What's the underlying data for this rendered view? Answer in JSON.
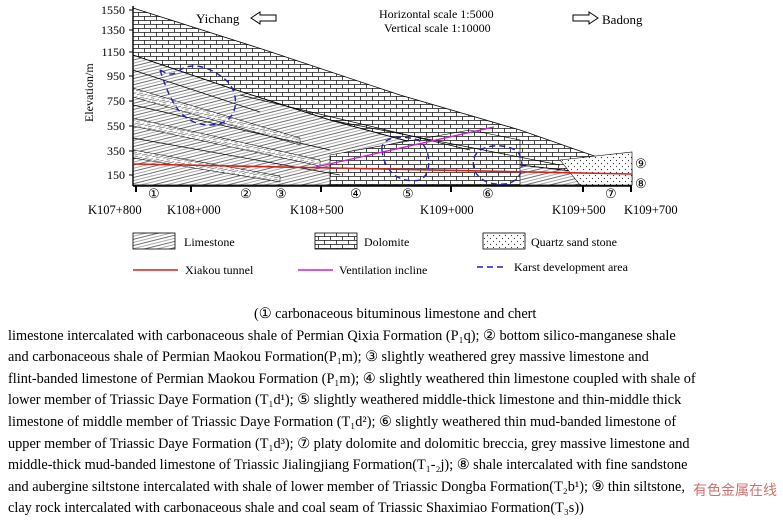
{
  "figure": {
    "direction_left": "Yichang",
    "direction_right": "Badong",
    "horizontal_scale": "Horizontal scale 1:5000",
    "vertical_scale": "Vertical scale 1:10000",
    "y_axis_label": "Elevation/m",
    "y_ticks": [
      "1550",
      "1350",
      "1150",
      "950",
      "750",
      "550",
      "350",
      "150"
    ],
    "stations": [
      "K107+800",
      "K108+000",
      "K108+500",
      "K109+000",
      "K109+500",
      "K109+700"
    ],
    "unit_numbers": [
      "①",
      "②",
      "③",
      "④",
      "⑤",
      "⑥",
      "⑦"
    ],
    "right_labels": [
      "⑨",
      "⑧"
    ],
    "legend": {
      "limestone": "Limestone",
      "dolomite": "Dolomite",
      "quartz_sand_stone": "Quartz sand stone",
      "xiakou_tunnel": "Xiakou tunnel",
      "ventilation_incline": "Ventilation incline",
      "karst_area": "Karst development area"
    },
    "colors": {
      "tunnel": "#d42020",
      "incline": "#cc20cc",
      "karst": "#2020b0"
    }
  },
  "caption": [
    "(① carbonaceous bituminous limestone and chert",
    "limestone intercalated with carbonaceous shale of Permian Qixia Formation (P₁q); ② bottom silico-manganese shale",
    "and carbonaceous shale of Permian Maokou Formation(P₁m); ③ slightly weathered grey massive limestone and",
    "flint-banded limestone of Permian Maokou Formation (P₁m); ④ slightly weathered thin limestone coupled with shale of",
    "lower member of Triassic Daye Formation (T₁d¹); ⑤ slightly weathered middle-thick limestone and thin-middle thick",
    "limestone of middle member of Triassic Daye Formation (T₁d²); ⑥ slightly weathered thin mud-banded limestone of",
    "upper member of Triassic Daye Formation (T₁d³); ⑦ platy dolomite and dolomitic breccia, grey massive limestone and",
    "middle-thick mud-banded limestone of Triassic Jialingjiang Formation(T₁-₂j); ⑧ shale intercalated with fine sandstone",
    "and aubergine siltstone intercalated with shale of lower member of Triassic Dongba Formation(T₂b¹); ⑨ thin siltstone,",
    "clay rock intercalated with carbonaceous shale and coal seam of Triassic Shaximiao Formation(T₃s))"
  ],
  "watermark": "有色金属在线"
}
